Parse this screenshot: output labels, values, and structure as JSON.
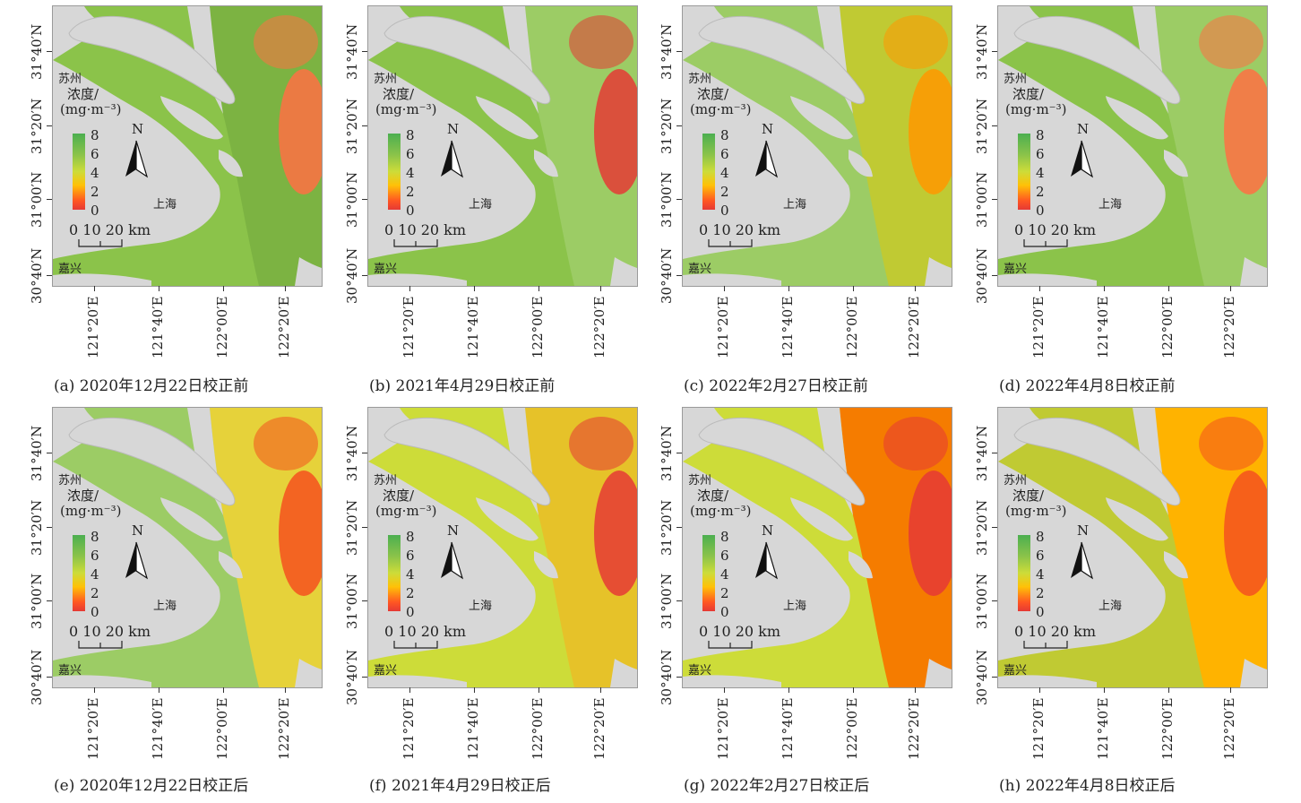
{
  "axes": {
    "lat_labels": [
      "31°40′N",
      "31°20′N",
      "31°00′N",
      "30°40′N"
    ],
    "lon_labels": [
      "121°20′E",
      "121°40′E",
      "122°00′E",
      "122°20′E"
    ]
  },
  "places": {
    "suzhou": "苏州",
    "shanghai": "上海",
    "jiaxing": "嘉兴"
  },
  "legend": {
    "title_line1": "浓度/",
    "title_line2": "(mg·m⁻³)",
    "ticks": [
      "8",
      "6",
      "4",
      "2",
      "0"
    ]
  },
  "north_label": "N",
  "scale_label": "0 10 20 km",
  "panels": [
    {
      "caption": "(a) 2020年12月22日校正前",
      "ocean": "#8bc34a",
      "offshore": "#7cb342",
      "hot": "#ff7043"
    },
    {
      "caption": "(b) 2021年4月29日校正前",
      "ocean": "#8bc34a",
      "offshore": "#9ccc65",
      "hot": "#e53935"
    },
    {
      "caption": "(c) 2022年2月27日校正前",
      "ocean": "#9ccc65",
      "offshore": "#c0ca33",
      "hot": "#ff9800"
    },
    {
      "caption": "(d) 2022年4月8日校正前",
      "ocean": "#8bc34a",
      "offshore": "#9ccc65",
      "hot": "#ff7043"
    },
    {
      "caption": "(e) 2020年12月22日校正后",
      "ocean": "#9ccc65",
      "offshore": "#e6d23a",
      "hot": "#f4511e"
    },
    {
      "caption": "(f) 2021年4月29日校正后",
      "ocean": "#cddc39",
      "offshore": "#e6c229",
      "hot": "#e53935"
    },
    {
      "caption": "(g) 2022年2月27日校正后",
      "ocean": "#cddc39",
      "offshore": "#f57c00",
      "hot": "#e53935"
    },
    {
      "caption": "(h) 2022年4月8日校正后",
      "ocean": "#c0ca33",
      "offshore": "#ffb300",
      "hot": "#f4511e"
    }
  ]
}
